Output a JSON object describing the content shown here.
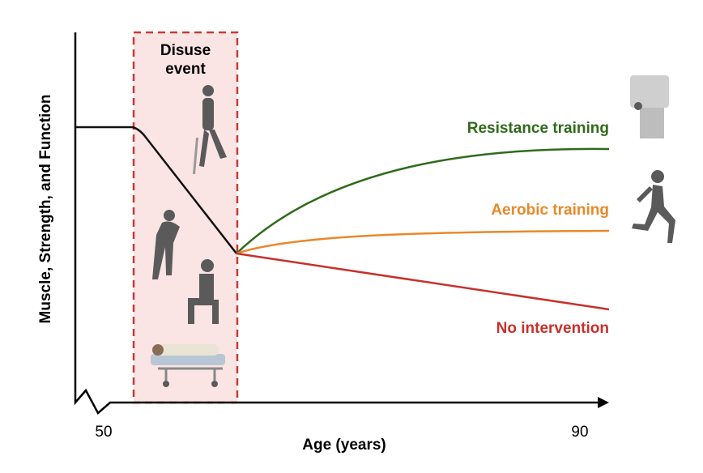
{
  "diagram": {
    "event_label": [
      "Disuse",
      "event"
    ],
    "y_axis_label": "Muscle, Strength, and Function",
    "x_axis_label": "Age (years)",
    "x_ticks": [
      "50",
      "90"
    ],
    "curves": [
      {
        "label": "Resistance training"
      },
      {
        "label": "Aerobic training"
      },
      {
        "label": "No intervention"
      }
    ]
  }
}
